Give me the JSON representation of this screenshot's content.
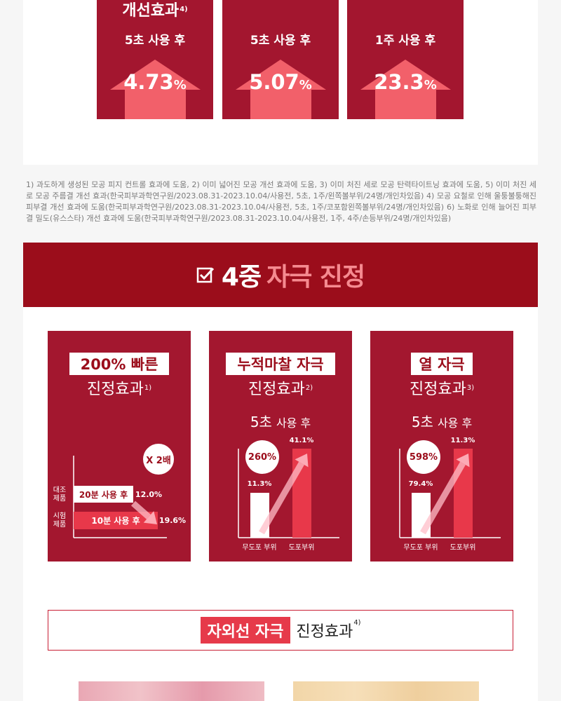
{
  "top_cards": {
    "heading": {
      "text": "개선효과",
      "note": "4)"
    },
    "items": [
      {
        "caption": "5초 사용 후",
        "value": "4.73",
        "unit": "%"
      },
      {
        "caption": "5초 사용 후",
        "value": "5.07",
        "unit": "%"
      },
      {
        "caption": "1주 사용 후",
        "value": "23.3",
        "unit": "%"
      }
    ]
  },
  "footnote": "1) 과도하게 생성된 모공 피지 컨트롤 효과에 도움, 2) 이미 넓어진 모공 개선 효과에 도움, 3) 이미 처진 세로 모공 탄력타이트닝 효과에 도움, 5) 이미 처진 세로 모공 주름결 개선 효과(한국피부과학연구원/2023.08.31-2023.10.04/사용전, 5초, 1주/왼쪽볼부위/24명/개인차있음) 4) 모공 요철로 인해 울퉁불퉁해진 피부결 개선 효과에 도움(한국피부과학연구원/2023.08.31-2023.10.04/사용전, 5초, 1주/코포함왼쪽볼부위/24명/개인차있음) 6) 노화로 인해 늘어진 피부결 밀도(유스스타) 개선 효과에 도움(한국피부과학연구원/2023.08.31-2023.10.04/사용전, 1주, 4주/손등부위/24명/개인차있음)",
  "banner": {
    "lead": "4중",
    "highlight": "자극 진정"
  },
  "cards": [
    {
      "label": "200% 빠른",
      "title": "진정효과",
      "note": "1)",
      "badge": "X 2배",
      "rows": [
        {
          "group": [
            "대조",
            "제품"
          ],
          "bar": "20분 사용 후",
          "value": "12.0%"
        },
        {
          "group": [
            "시험",
            "제품"
          ],
          "bar": "10분 사용 후",
          "value": "19.6%"
        }
      ]
    },
    {
      "label": "누적마찰 자극",
      "title": "진정효과",
      "note": "2)",
      "caption": {
        "lead": "5초",
        "rest": "사용 후"
      },
      "badge": "260%",
      "bars": [
        {
          "name": "무도포 부위",
          "value": "11.3%"
        },
        {
          "name": "도포부위",
          "value": "41.1%"
        }
      ]
    },
    {
      "label": "열 자극",
      "title": "진정효과",
      "note": "3)",
      "caption": {
        "lead": "5초",
        "rest": "사용 후"
      },
      "badge": "598%",
      "bars": [
        {
          "name": "무도포 부위",
          "value": "79.4%"
        },
        {
          "name": "도포부위",
          "value": "11.3%"
        }
      ]
    }
  ],
  "uv": {
    "highlight": "자외선 자극",
    "title": "진정효과",
    "note": "4)"
  }
}
